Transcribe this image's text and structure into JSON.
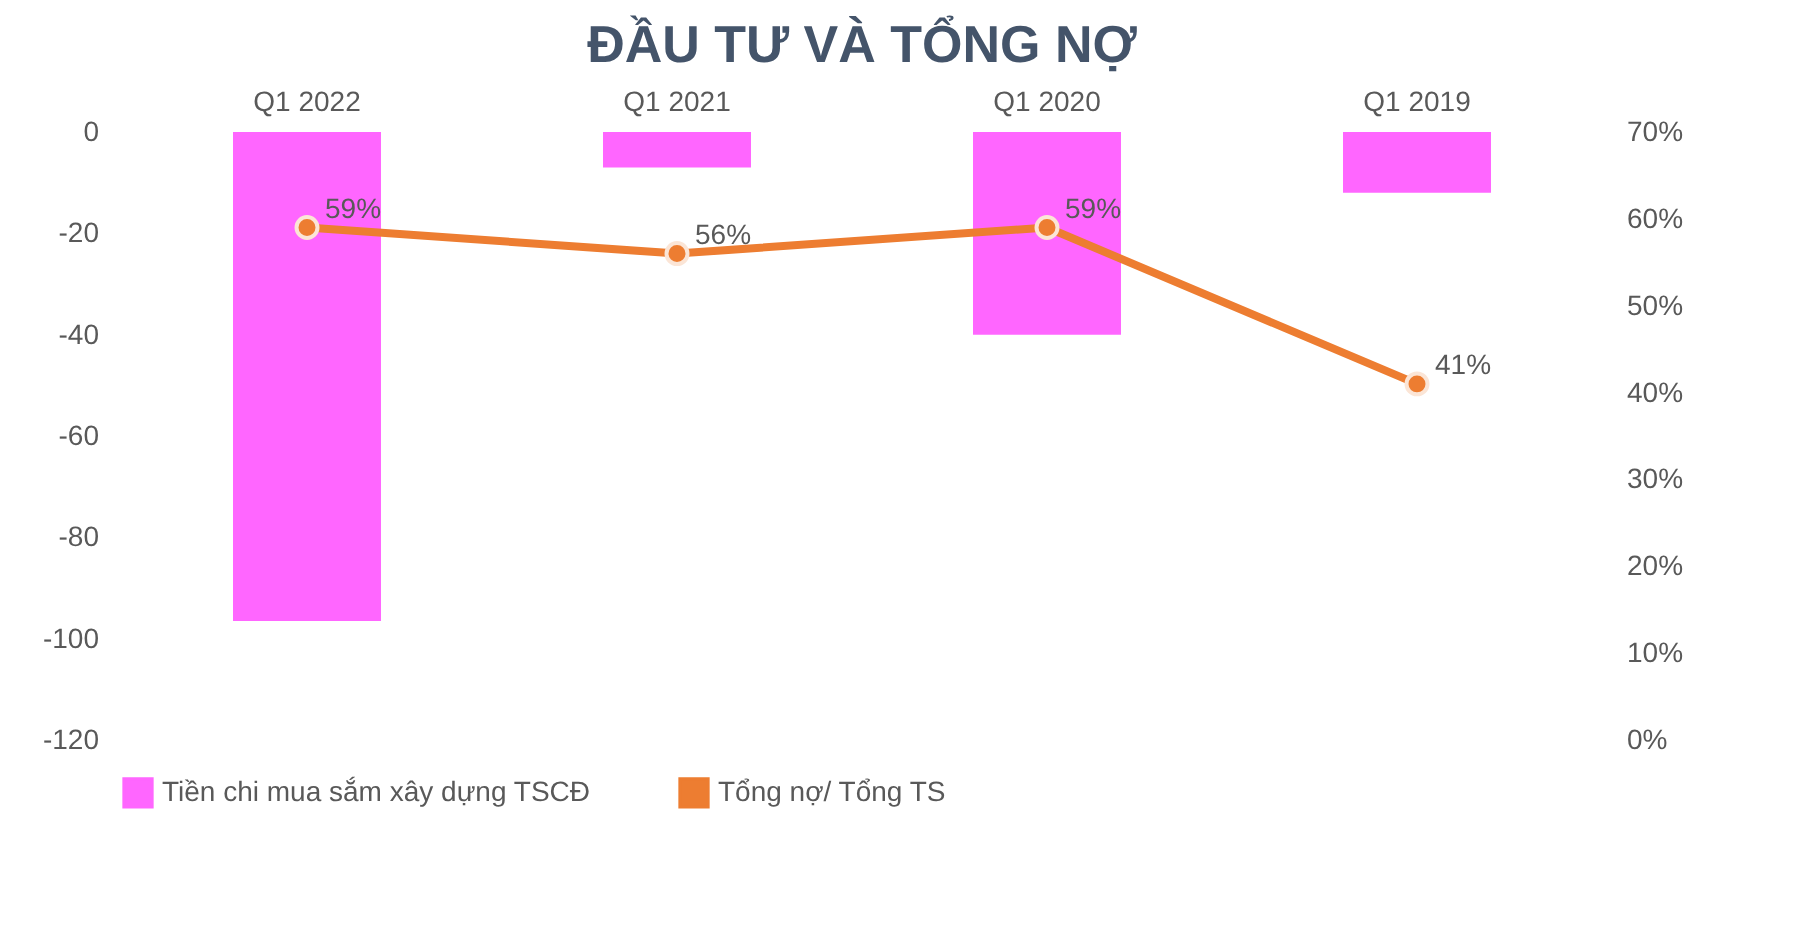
{
  "chart_data": {
    "type": "bar",
    "title": "ĐẦU TƯ VÀ TỔNG NỢ",
    "categories": [
      "Q1 2022",
      "Q1 2021",
      "Q1 2020",
      "Q1 2019"
    ],
    "series": [
      {
        "name": "Tiền chi mua sắm xây dựng TSCĐ",
        "color": "#ff66ff",
        "values": [
          -96.5,
          -7,
          -40,
          -12
        ]
      },
      {
        "name": "Tổng nợ/ Tổng TS",
        "type": "line",
        "axis": "y2",
        "color": "#ed7d31",
        "marker": "circle",
        "values": [
          59,
          56,
          59,
          41
        ],
        "value_labels": [
          "59%",
          "56%",
          "59%",
          "41%"
        ]
      }
    ],
    "ylim": [
      -120,
      0
    ],
    "yticks": [
      0,
      -20,
      -40,
      -60,
      -80,
      -100,
      -120
    ],
    "y2lim": [
      0,
      70
    ],
    "y2ticks": [
      {
        "value": 0,
        "label": "0%"
      },
      {
        "value": 10,
        "label": "10%"
      },
      {
        "value": 20,
        "label": "20%"
      },
      {
        "value": 30,
        "label": "30%"
      },
      {
        "value": 40,
        "label": "40%"
      },
      {
        "value": 50,
        "label": "50%"
      },
      {
        "value": 60,
        "label": "60%"
      },
      {
        "value": 70,
        "label": "70%"
      }
    ],
    "grid": false,
    "legend": "bottom"
  }
}
